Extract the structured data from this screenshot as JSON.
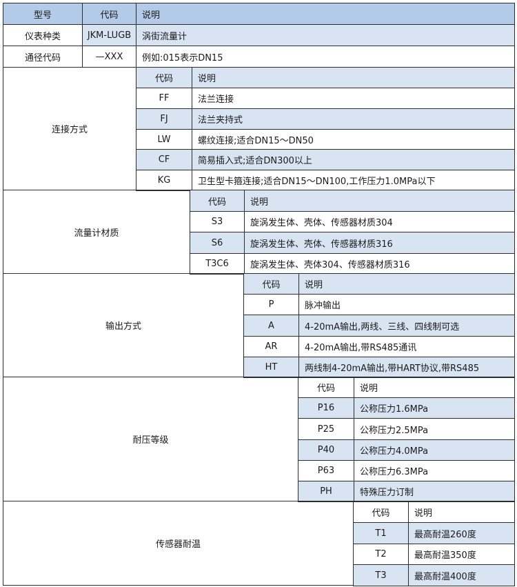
{
  "header": {
    "model": "型号",
    "code": "代码",
    "desc": "说明"
  },
  "top_rows": [
    {
      "name": "仪表种类",
      "code": "JKM-LUGB",
      "desc": "涡街流量计"
    },
    {
      "name": "通径代码",
      "code": "—XXX",
      "desc": "例如:015表示DN15"
    }
  ],
  "colors": {
    "header": "#b3cbe8",
    "shaded": "#d9e4f3",
    "border": "#2b2b2b"
  },
  "sections": [
    {
      "title": "连接方式",
      "code_label": "代码",
      "desc_label": "说明",
      "header_shaded": true,
      "rows": [
        {
          "code": "FF",
          "desc": "法兰连接"
        },
        {
          "code": "FJ",
          "desc": "法兰夹持式"
        },
        {
          "code": "LW",
          "desc": "螺纹连接;适合DN15～DN50"
        },
        {
          "code": "CF",
          "desc": "简易插入式;适合DN300以上"
        },
        {
          "code": "KG",
          "desc": "卫生型卡箍连接;适合DN15～DN100,工作压力1.0MPa以下"
        }
      ]
    },
    {
      "title": "流量计材质",
      "code_label": "代码",
      "desc_label": "说明",
      "header_shaded": true,
      "rows": [
        {
          "code": "S3",
          "desc": "旋涡发生体、壳体、传感器材质304"
        },
        {
          "code": "S6",
          "desc": "旋涡发生体、壳体、传感器材质316"
        },
        {
          "code": "T3C6",
          "desc": "旋涡发生体、壳体304、传感器材质316"
        }
      ]
    },
    {
      "title": "输出方式",
      "code_label": "代码",
      "desc_label": "说明",
      "header_shaded": true,
      "rows": [
        {
          "code": "P",
          "desc": "脉冲输出"
        },
        {
          "code": "A",
          "desc": "4-20mA输出,两线、三线、四线制可选"
        },
        {
          "code": "AR",
          "desc": "4-20mA输出,带RS485通讯"
        },
        {
          "code": "HT",
          "desc": "两线制4-20mA输出,带HART协议,带RS485"
        }
      ]
    },
    {
      "title": "耐压等级",
      "code_label": "代码",
      "desc_label": "说明",
      "header_shaded": false,
      "rows": [
        {
          "code": "P16",
          "desc": "公称压力1.6MPa"
        },
        {
          "code": "P25",
          "desc": "公称压力2.5MPa"
        },
        {
          "code": "P40",
          "desc": "公称压力4.0MPa"
        },
        {
          "code": "P63",
          "desc": "公称压力6.3MPa"
        },
        {
          "code": "PH",
          "desc": "特殊压力订制"
        }
      ]
    },
    {
      "title": "传感器耐温",
      "code_label": "代码",
      "desc_label": "说明",
      "header_shaded": false,
      "rows": [
        {
          "code": "T1",
          "desc": "最高耐温260度"
        },
        {
          "code": "T2",
          "desc": "最高耐温350度"
        },
        {
          "code": "T3",
          "desc": "最高耐温400度"
        }
      ]
    }
  ]
}
